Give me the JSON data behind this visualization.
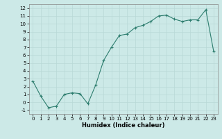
{
  "x": [
    0,
    1,
    2,
    3,
    4,
    5,
    6,
    7,
    8,
    9,
    10,
    11,
    12,
    13,
    14,
    15,
    16,
    17,
    18,
    19,
    20,
    21,
    22,
    23
  ],
  "y": [
    2.7,
    0.8,
    -0.7,
    -0.5,
    1.0,
    1.2,
    1.1,
    -0.2,
    2.2,
    5.3,
    7.0,
    8.5,
    8.7,
    9.5,
    9.8,
    10.3,
    11.0,
    11.1,
    10.6,
    10.3,
    10.5,
    10.5,
    11.8,
    6.5
  ],
  "line_color": "#2d7d6e",
  "marker": "+",
  "marker_size": 3,
  "marker_linewidth": 0.8,
  "line_width": 0.8,
  "bg_color": "#cce9e7",
  "grid_color": "#b8d9d6",
  "xlabel": "Humidex (Indice chaleur)",
  "xlim": [
    -0.5,
    23.5
  ],
  "ylim": [
    -1.5,
    12.5
  ],
  "yticks": [
    -1,
    0,
    1,
    2,
    3,
    4,
    5,
    6,
    7,
    8,
    9,
    10,
    11,
    12
  ],
  "xticks": [
    0,
    1,
    2,
    3,
    4,
    5,
    6,
    7,
    8,
    9,
    10,
    11,
    12,
    13,
    14,
    15,
    16,
    17,
    18,
    19,
    20,
    21,
    22,
    23
  ],
  "tick_fontsize": 5.0,
  "xlabel_fontsize": 6.0
}
